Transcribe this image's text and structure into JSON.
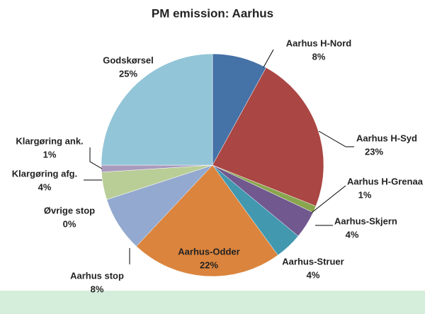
{
  "chart_data": {
    "type": "pie",
    "title": "PM emission: Aarhus",
    "categories": [
      "Aarhus H-Nord",
      "Aarhus H-Syd",
      "Aarhus H-Grenaa",
      "Aarhus-Skjern",
      "Aarhus-Struer",
      "Aarhus-Odder",
      "Aarhus stop",
      "Øvrige stop",
      "Klargøring afg.",
      "Klargøring ank.",
      "Godskørsel"
    ],
    "values": [
      8,
      23,
      1,
      4,
      4,
      22,
      8,
      0,
      4,
      1,
      25
    ],
    "value_labels": [
      "8%",
      "23%",
      "1%",
      "4%",
      "4%",
      "22%",
      "8%",
      "0%",
      "4%",
      "1%",
      "25%"
    ],
    "colors": [
      "#4572a7",
      "#aa4643",
      "#89a54e",
      "#71588f",
      "#4198af",
      "#db843d",
      "#93a9cf",
      "#d19392",
      "#b9cd96",
      "#a99bbd",
      "#92c5d7"
    ]
  }
}
